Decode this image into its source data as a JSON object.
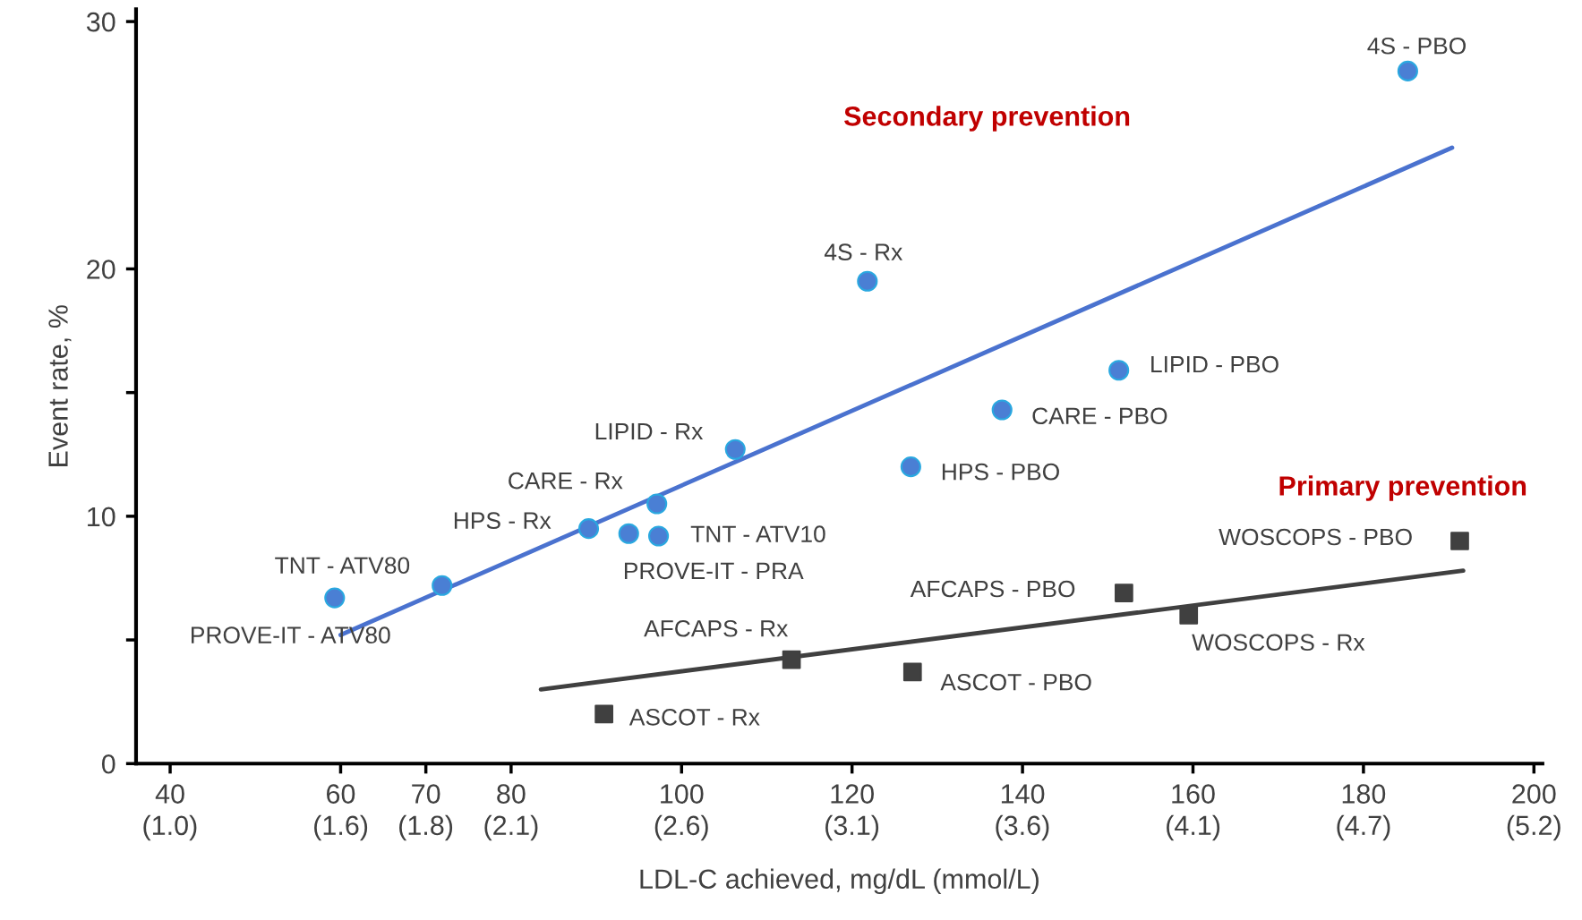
{
  "chart_data": {
    "type": "scatter",
    "xlabel": "LDL-C achieved, mg/dL (mmol/L)",
    "ylabel": "Event rate, %",
    "xlim": [
      36,
      201
    ],
    "ylim": [
      0,
      30.5
    ],
    "xticks": [
      40,
      60,
      70,
      80,
      100,
      120,
      140,
      160,
      180,
      200
    ],
    "x2lim": [
      0.931,
      5.198
    ],
    "x2ticks": [
      {
        "value": 1.034,
        "label": "(1.0)"
      },
      {
        "value": 1.552,
        "label": "(1.6)"
      },
      {
        "value": 1.81,
        "label": "(1.8)"
      },
      {
        "value": 2.069,
        "label": "(2.1)"
      },
      {
        "value": 2.586,
        "label": "(2.6)"
      },
      {
        "value": 3.103,
        "label": "(3.1)"
      },
      {
        "value": 3.62,
        "label": "(3.6)"
      },
      {
        "value": 4.138,
        "label": "(4.1)"
      },
      {
        "value": 4.655,
        "label": "(4.7)"
      },
      {
        "value": 5.172,
        "label": "(5.2)"
      }
    ],
    "yticks": [
      0,
      {
        "value": 5,
        "label": null
      },
      10,
      {
        "value": 15,
        "label": null
      },
      20,
      30
    ],
    "grid": false,
    "legend": false,
    "series": [
      {
        "marker": "circle",
        "color": "#4a7fd4",
        "x": [
          59.3,
          71.9,
          89.1,
          93.8,
          97.3,
          97.1,
          106.3,
          121.8,
          126.9,
          137.6,
          151.3,
          185.2
        ],
        "values": [
          6.7,
          7.2,
          9.5,
          9.3,
          9.2,
          10.5,
          12.7,
          19.5,
          12.0,
          14.3,
          15.9,
          28.0
        ]
      },
      {
        "marker": "square",
        "color": "#404040",
        "x": [
          90.9,
          112.9,
          127.1,
          151.9,
          159.5,
          191.3
        ],
        "values": [
          2.0,
          4.2,
          3.7,
          6.9,
          6.0,
          9.0
        ]
      },
      {
        "type": "line",
        "marker": "none",
        "color": "#4a72cf",
        "x": [
          60,
          190.4
        ],
        "values": [
          5.2,
          24.9
        ]
      },
      {
        "type": "line",
        "marker": "none",
        "color": "#404040",
        "x": [
          83.5,
          191.7
        ],
        "values": [
          3.0,
          7.8
        ]
      }
    ],
    "annotations": [
      {
        "text": "TNT - ATV80",
        "x": 71.9,
        "y": 7.2
      },
      {
        "text": "PROVE-IT - ATV80",
        "x": 59.3,
        "y": 6.7
      },
      {
        "text": "HPS - Rx",
        "x": 89.1,
        "y": 9.5
      },
      {
        "text": "PROVE-IT - PRA",
        "x": 93.8,
        "y": 9.3
      },
      {
        "text": "TNT - ATV10",
        "x": 97.3,
        "y": 9.2
      },
      {
        "text": "CARE - Rx",
        "x": 97.1,
        "y": 10.5
      },
      {
        "text": "LIPID - Rx",
        "x": 106.3,
        "y": 12.7
      },
      {
        "text": "4S - Rx",
        "x": 121.8,
        "y": 19.5
      },
      {
        "text": "HPS - PBO",
        "x": 126.9,
        "y": 12.0
      },
      {
        "text": "CARE - PBO",
        "x": 137.6,
        "y": 14.3
      },
      {
        "text": "LIPID - PBO",
        "x": 151.3,
        "y": 15.9
      },
      {
        "text": "4S - PBO",
        "x": 185.2,
        "y": 28.0
      },
      {
        "text": "ASCOT - Rx",
        "x": 90.9,
        "y": 2.0
      },
      {
        "text": "AFCAPS - Rx",
        "x": 112.9,
        "y": 4.2
      },
      {
        "text": "ASCOT - PBO",
        "x": 127.1,
        "y": 3.7
      },
      {
        "text": "AFCAPS - PBO",
        "x": 151.9,
        "y": 6.9
      },
      {
        "text": "WOSCOPS - Rx",
        "x": 159.5,
        "y": 6.0
      },
      {
        "text": "WOSCOPS - PBO",
        "x": 191.3,
        "y": 9.0
      },
      "Secondary prevention",
      "Primary prevention"
    ]
  }
}
